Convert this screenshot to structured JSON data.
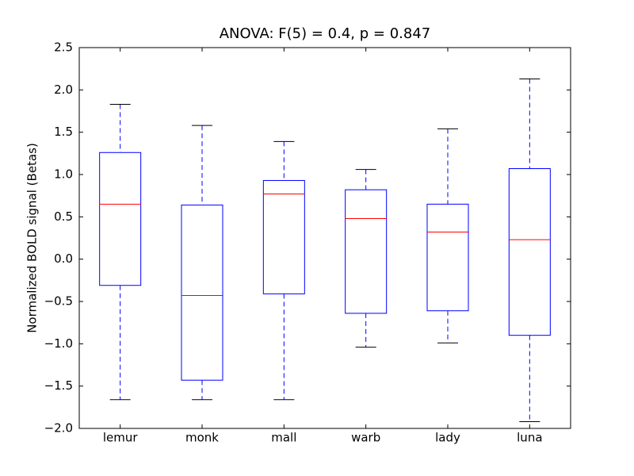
{
  "chart_data": {
    "type": "box",
    "title": "ANOVA: F(5) = 0.4, p = 0.847",
    "y_label": "Normalized BOLD signal (Betas)",
    "categories": [
      "lemur",
      "monk",
      "mall",
      "warb",
      "lady",
      "luna"
    ],
    "whisker_low": [
      -1.66,
      -1.66,
      -1.66,
      -1.04,
      -0.99,
      -1.92
    ],
    "q1": [
      -0.31,
      -1.43,
      -0.41,
      -0.64,
      -0.61,
      -0.9
    ],
    "median": [
      0.65,
      -0.43,
      0.77,
      0.48,
      0.32,
      0.23
    ],
    "q3": [
      1.26,
      0.64,
      0.93,
      0.82,
      0.65,
      1.07
    ],
    "whisker_high": [
      1.83,
      1.58,
      1.39,
      1.06,
      1.54,
      2.13
    ],
    "box_color": "#0000ff",
    "median_color": "#ff0000",
    "cap_color": "#000000",
    "ylim": [
      -2,
      2.5
    ],
    "yticks": [
      {
        "value": -2,
        "label": "−2.0"
      },
      {
        "value": -1.5,
        "label": "−1.5"
      },
      {
        "value": -1,
        "label": "−1.0"
      },
      {
        "value": -0.5,
        "label": "−0.5"
      },
      {
        "value": 0,
        "label": "0.0"
      },
      {
        "value": 0.5,
        "label": "0.5"
      },
      {
        "value": 1,
        "label": "1.0"
      },
      {
        "value": 1.5,
        "label": "1.5"
      },
      {
        "value": 2,
        "label": "2.0"
      },
      2.5
    ],
    "grid": false
  }
}
